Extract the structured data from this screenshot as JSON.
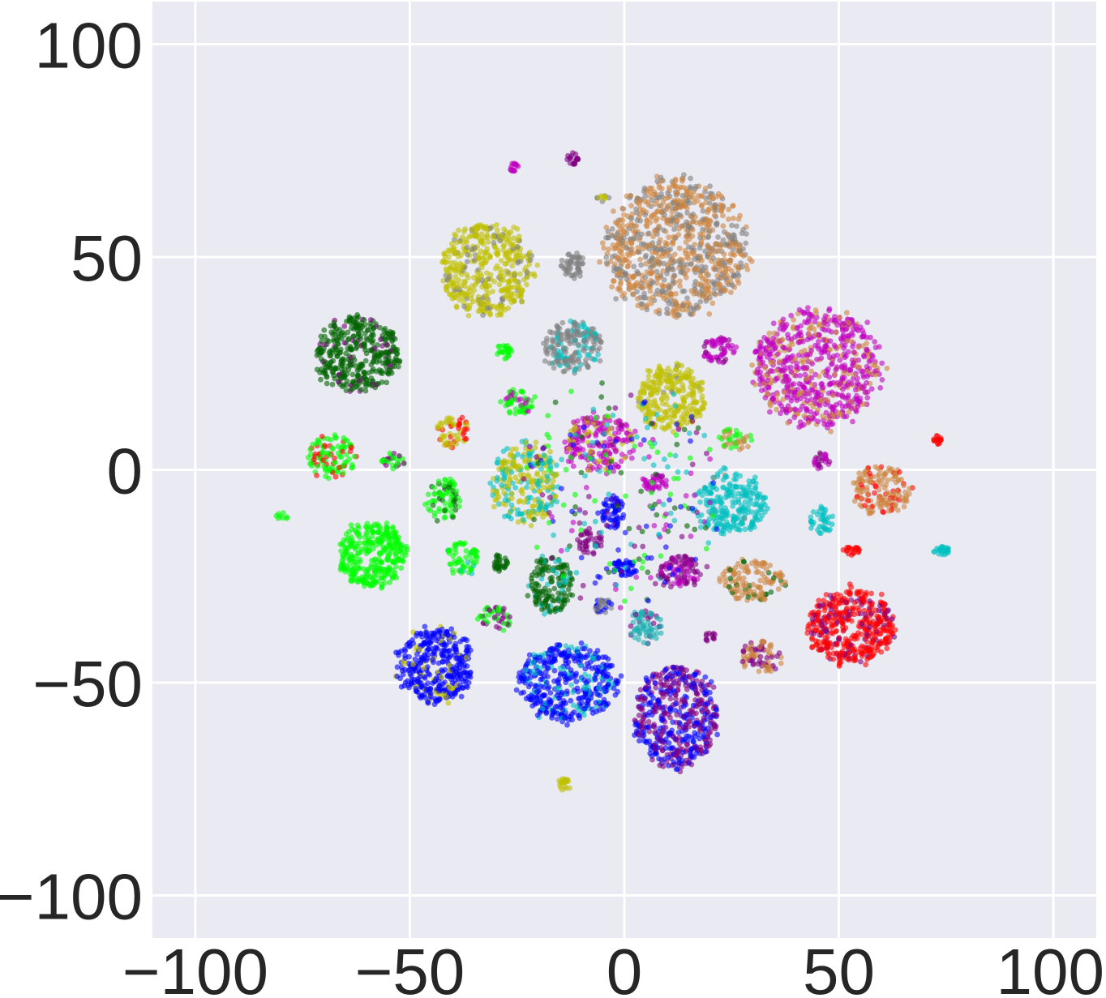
{
  "chart_data": {
    "type": "scatter",
    "title": "",
    "xlabel": "",
    "ylabel": "",
    "xlim": [
      -110,
      110
    ],
    "ylim": [
      -110,
      110
    ],
    "grid": true,
    "legend": "none",
    "background_color": "#eaeaf2",
    "grid_color": "#ffffff",
    "x_ticks": [
      -100,
      -50,
      0,
      50,
      100
    ],
    "y_ticks": [
      100,
      50,
      0,
      -50,
      -100
    ],
    "x_tick_labels": [
      "−100",
      "−50",
      "0",
      "50",
      "100"
    ],
    "y_tick_labels": [
      "100",
      "50",
      "0",
      "−50",
      "−100"
    ],
    "series_colors": {
      "peru": "#cd853f",
      "gray": "#808080",
      "olive": "#bfbf00",
      "magenta": "#bf00bf",
      "purple": "#800080",
      "darkgreen": "#006400",
      "lime": "#00ff00",
      "red": "#ff0000",
      "cyan": "#00bfbf",
      "blue": "#0000ff",
      "teal": "#1ab0b0"
    },
    "clusters": [
      {
        "cx": 12,
        "cy": 52,
        "rx": 17,
        "ry": 16,
        "n": 900,
        "colors": {
          "peru": 0.62,
          "gray": 0.38
        }
      },
      {
        "cx": -32,
        "cy": 47,
        "rx": 11,
        "ry": 11,
        "n": 450,
        "colors": {
          "olive": 0.85,
          "gray": 0.15
        }
      },
      {
        "cx": 45,
        "cy": 24,
        "rx": 15,
        "ry": 14,
        "n": 700,
        "colors": {
          "magenta": 0.72,
          "peru": 0.28
        }
      },
      {
        "cx": -62,
        "cy": 27,
        "rx": 10,
        "ry": 9,
        "n": 380,
        "colors": {
          "darkgreen": 0.9,
          "purple": 0.1
        }
      },
      {
        "cx": -12,
        "cy": 48,
        "rx": 3,
        "ry": 3,
        "n": 50,
        "colors": {
          "gray": 1.0
        }
      },
      {
        "cx": -12,
        "cy": 29,
        "rx": 7,
        "ry": 6,
        "n": 200,
        "colors": {
          "gray": 0.65,
          "cyan": 0.35
        }
      },
      {
        "cx": 11,
        "cy": 17,
        "rx": 8,
        "ry": 8,
        "n": 260,
        "colors": {
          "olive": 0.95,
          "gray": 0.05
        }
      },
      {
        "cx": -6,
        "cy": 6,
        "rx": 8,
        "ry": 7,
        "n": 220,
        "colors": {
          "magenta": 0.75,
          "olive": 0.25
        }
      },
      {
        "cx": -68,
        "cy": 3,
        "rx": 6,
        "ry": 5,
        "n": 110,
        "colors": {
          "lime": 0.7,
          "red": 0.3
        }
      },
      {
        "cx": -40,
        "cy": 9,
        "rx": 4,
        "ry": 4,
        "n": 60,
        "colors": {
          "olive": 0.7,
          "red": 0.3
        }
      },
      {
        "cx": -25,
        "cy": 16,
        "rx": 4,
        "ry": 3,
        "n": 60,
        "colors": {
          "lime": 0.6,
          "magenta": 0.4
        }
      },
      {
        "cx": -23,
        "cy": -3,
        "rx": 8,
        "ry": 10,
        "n": 260,
        "colors": {
          "olive": 0.6,
          "cyan": 0.4
        }
      },
      {
        "cx": 25,
        "cy": -8,
        "rx": 9,
        "ry": 7,
        "n": 230,
        "colors": {
          "cyan": 0.95,
          "gray": 0.05
        }
      },
      {
        "cx": 60,
        "cy": -5,
        "rx": 7,
        "ry": 6,
        "n": 150,
        "colors": {
          "peru": 0.8,
          "red": 0.2
        }
      },
      {
        "cx": -59,
        "cy": -20,
        "rx": 8,
        "ry": 8,
        "n": 320,
        "colors": {
          "lime": 1.0
        }
      },
      {
        "cx": -42,
        "cy": -7,
        "rx": 4,
        "ry": 5,
        "n": 80,
        "colors": {
          "darkgreen": 0.3,
          "lime": 0.7
        }
      },
      {
        "cx": -38,
        "cy": -21,
        "rx": 4,
        "ry": 4,
        "n": 60,
        "colors": {
          "lime": 0.9,
          "cyan": 0.1
        }
      },
      {
        "cx": -17,
        "cy": -27,
        "rx": 5,
        "ry": 7,
        "n": 150,
        "colors": {
          "darkgreen": 0.8,
          "cyan": 0.2
        }
      },
      {
        "cx": 13,
        "cy": -24,
        "rx": 5,
        "ry": 4,
        "n": 100,
        "colors": {
          "purple": 0.6,
          "magenta": 0.4
        }
      },
      {
        "cx": 30,
        "cy": -26,
        "rx": 8,
        "ry": 5,
        "n": 130,
        "colors": {
          "peru": 0.85,
          "darkgreen": 0.15
        }
      },
      {
        "cx": 53,
        "cy": -37,
        "rx": 10,
        "ry": 9,
        "n": 450,
        "colors": {
          "red": 0.78,
          "purple": 0.22
        }
      },
      {
        "cx": -44,
        "cy": -46,
        "rx": 9,
        "ry": 9,
        "n": 380,
        "colors": {
          "blue": 0.85,
          "olive": 0.15
        }
      },
      {
        "cx": -13,
        "cy": -50,
        "rx": 12,
        "ry": 9,
        "n": 430,
        "colors": {
          "blue": 0.75,
          "cyan": 0.25
        }
      },
      {
        "cx": 12,
        "cy": -58,
        "rx": 10,
        "ry": 12,
        "n": 500,
        "colors": {
          "purple": 0.55,
          "blue": 0.45
        }
      },
      {
        "cx": 32,
        "cy": -44,
        "rx": 5,
        "ry": 4,
        "n": 80,
        "colors": {
          "peru": 0.6,
          "purple": 0.4
        }
      },
      {
        "cx": 5,
        "cy": -37,
        "rx": 4,
        "ry": 4,
        "n": 70,
        "colors": {
          "teal": 0.7,
          "purple": 0.3
        }
      },
      {
        "cx": -8,
        "cy": -17,
        "rx": 3,
        "ry": 3,
        "n": 40,
        "colors": {
          "purple": 1.0
        }
      },
      {
        "cx": -3,
        "cy": -10,
        "rx": 3,
        "ry": 4,
        "n": 60,
        "colors": {
          "blue": 0.8,
          "purple": 0.2
        }
      },
      {
        "cx": 7,
        "cy": -3,
        "rx": 3,
        "ry": 2,
        "n": 40,
        "colors": {
          "magenta": 1.0
        }
      },
      {
        "cx": 0,
        "cy": -23,
        "rx": 3,
        "ry": 2,
        "n": 40,
        "colors": {
          "blue": 1.0
        }
      },
      {
        "cx": -5,
        "cy": -32,
        "rx": 2,
        "ry": 2,
        "n": 30,
        "colors": {
          "gray": 0.6,
          "blue": 0.4
        }
      },
      {
        "cx": -30,
        "cy": -35,
        "rx": 4,
        "ry": 3,
        "n": 50,
        "colors": {
          "lime": 0.6,
          "purple": 0.4
        }
      },
      {
        "cx": -29,
        "cy": -22,
        "rx": 2,
        "ry": 2,
        "n": 30,
        "colors": {
          "darkgreen": 1.0
        }
      },
      {
        "cx": -54,
        "cy": 2,
        "rx": 3,
        "ry": 2,
        "n": 30,
        "colors": {
          "lime": 0.5,
          "purple": 0.5
        }
      },
      {
        "cx": 22,
        "cy": 28,
        "rx": 4,
        "ry": 3,
        "n": 60,
        "colors": {
          "magenta": 0.8,
          "purple": 0.2
        }
      },
      {
        "cx": 26,
        "cy": 7,
        "rx": 4,
        "ry": 3,
        "n": 40,
        "colors": {
          "lime": 0.6,
          "peru": 0.4
        }
      },
      {
        "cx": 46,
        "cy": -12,
        "rx": 3,
        "ry": 3,
        "n": 40,
        "colors": {
          "cyan": 1.0
        }
      },
      {
        "cx": 46,
        "cy": 2,
        "rx": 2,
        "ry": 2,
        "n": 25,
        "colors": {
          "magenta": 0.6,
          "purple": 0.4
        }
      },
      {
        "cx": 53,
        "cy": -19,
        "rx": 2,
        "ry": 1,
        "n": 20,
        "colors": {
          "red": 1.0
        }
      },
      {
        "cx": 74,
        "cy": -19,
        "rx": 2,
        "ry": 1,
        "n": 25,
        "colors": {
          "cyan": 1.0
        }
      },
      {
        "cx": 73,
        "cy": 7,
        "rx": 1,
        "ry": 1,
        "n": 15,
        "colors": {
          "red": 1.0
        }
      },
      {
        "cx": -26,
        "cy": 71,
        "rx": 1.5,
        "ry": 1,
        "n": 15,
        "colors": {
          "magenta": 1.0
        }
      },
      {
        "cx": -12,
        "cy": 73,
        "rx": 1.5,
        "ry": 1.5,
        "n": 20,
        "colors": {
          "purple": 1.0
        }
      },
      {
        "cx": -28,
        "cy": 28,
        "rx": 2,
        "ry": 2,
        "n": 25,
        "colors": {
          "lime": 1.0
        }
      },
      {
        "cx": -14,
        "cy": -74,
        "rx": 1.5,
        "ry": 1.5,
        "n": 20,
        "colors": {
          "olive": 1.0
        }
      },
      {
        "cx": 20,
        "cy": -39,
        "rx": 1.5,
        "ry": 1.5,
        "n": 12,
        "colors": {
          "purple": 1.0
        }
      },
      {
        "cx": -80,
        "cy": -11,
        "rx": 1.5,
        "ry": 1,
        "n": 8,
        "colors": {
          "lime": 1.0
        }
      },
      {
        "cx": -5,
        "cy": 64,
        "rx": 2,
        "ry": 1,
        "n": 10,
        "colors": {
          "olive": 0.5,
          "gray": 0.5
        }
      },
      {
        "cx": 0,
        "cy": -5,
        "rx": 25,
        "ry": 25,
        "n": 260,
        "colors": {
          "lime": 0.15,
          "cyan": 0.2,
          "purple": 0.2,
          "blue": 0.15,
          "magenta": 0.15,
          "darkgreen": 0.15
        }
      }
    ]
  }
}
